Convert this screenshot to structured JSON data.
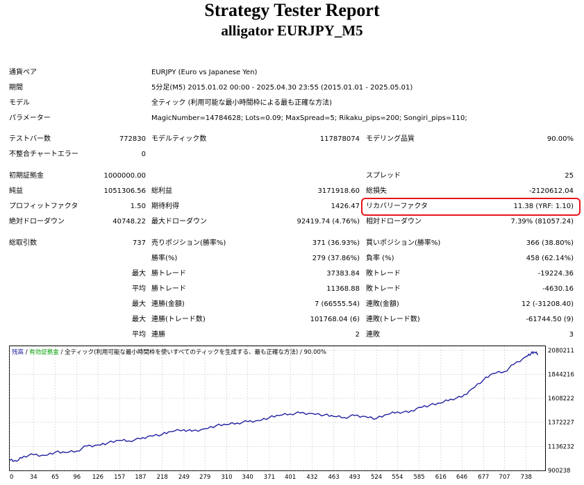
{
  "report": {
    "title": "Strategy Tester Report",
    "subtitle": "alligator EURJPY_M5"
  },
  "settings": {
    "symbol_label": "通貨ペア",
    "symbol_value": "EURJPY (Euro vs Japanese Yen)",
    "period_label": "期間",
    "period_value": "5分足(M5) 2015.01.02 00:00 - 2025.04.30 23:55 (2015.01.01 - 2025.05.01)",
    "model_label": "モデル",
    "model_value": "全ティック (利用可能な最小時間枠による最も正確な方法)",
    "params_label": "パラメーター",
    "params_value": "MagicNumber=14784628; Lots=0.09; MaxSpread=5; Rikaku_pips=200; Songiri_pips=110;"
  },
  "test": {
    "bars_label": "テストバー数",
    "bars_value": "772830",
    "ticks_label": "モデルティック数",
    "ticks_value": "117878074",
    "quality_label": "モデリング品質",
    "quality_value": "90.00%",
    "mismatch_label": "不整合チャートエラー",
    "mismatch_value": "0"
  },
  "results": {
    "deposit_label": "初期証拠金",
    "deposit_value": "1000000.00",
    "spread_label": "スプレッド",
    "spread_value": "25",
    "net_label": "純益",
    "net_value": "1051306.56",
    "gross_profit_label": "総利益",
    "gross_profit_value": "3171918.60",
    "gross_loss_label": "総損失",
    "gross_loss_value": "-2120612.04",
    "pf_label": "プロフィットファクタ",
    "pf_value": "1.50",
    "payoff_label": "期待利得",
    "payoff_value": "1426.47",
    "rf_label": "リカバリーファクタ",
    "rf_value": "11.38 (YRF: 1.10)",
    "abs_dd_label": "絶対ドローダウン",
    "abs_dd_value": "40748.22",
    "max_dd_label": "最大ドローダウン",
    "max_dd_value": "92419.74 (4.76%)",
    "rel_dd_label": "相対ドローダウン",
    "rel_dd_value": "7.39% (81057.24)"
  },
  "trades": {
    "total_label": "総取引数",
    "total_value": "737",
    "short_label": "売りポジション(勝率%)",
    "short_value": "371 (36.93%)",
    "long_label": "買いポジション(勝率%)",
    "long_value": "366 (38.80%)",
    "win_label": "勝率(%)",
    "win_value": "279 (37.86%)",
    "loss_label": "負率 (%)",
    "loss_value": "458 (62.14%)",
    "max_label": "最大",
    "avg_label": "平均",
    "largest_win_label": "勝トレード",
    "largest_win_value": "37383.84",
    "largest_loss_label": "敗トレード",
    "largest_loss_value": "-19224.36",
    "avg_win_label": "勝トレード",
    "avg_win_value": "11368.88",
    "avg_loss_label": "敗トレード",
    "avg_loss_value": "-4630.16",
    "max_cons_wins_label": "連勝(金額)",
    "max_cons_wins_value": "7 (66555.54)",
    "max_cons_losses_label": "連敗(金額)",
    "max_cons_losses_value": "12 (-31208.40)",
    "max_cons_profit_label": "連勝(トレード数)",
    "max_cons_profit_value": "101768.04 (6)",
    "max_cons_loss_label": "連敗(トレード数)",
    "max_cons_loss_value": "-61744.50 (9)",
    "avg_cons_wins_label": "連勝",
    "avg_cons_wins_value": "2",
    "avg_cons_losses_label": "連敗",
    "avg_cons_losses_value": "3"
  },
  "highlight_color": "#e8141c",
  "chart_data": {
    "type": "line",
    "legend": {
      "balance": "残高",
      "sep1": " / ",
      "equity": "有効証拠金",
      "sep2": " / ",
      "model": "全ティック(利用可能な最小時間枠を使いすべてのティックを生成する、最も正確な方法)",
      "sep3": " / ",
      "quality": "90.00%"
    },
    "colors": {
      "balance": "#1f1fa0",
      "equity": "#00a000",
      "line": "#1f1fa0",
      "grid": "#c8c8c8"
    },
    "xlim": [
      0,
      765
    ],
    "ylim": [
      900238,
      2119520
    ],
    "x_ticks": [
      "0",
      "34",
      "65",
      "96",
      "126",
      "157",
      "187",
      "218",
      "249",
      "279",
      "310",
      "340",
      "371",
      "401",
      "432",
      "463",
      "493",
      "524",
      "554",
      "585",
      "616",
      "646",
      "677",
      "707",
      "738"
    ],
    "y_ticks": [
      "2080211",
      "1844216",
      "1608222",
      "1372227",
      "1136232",
      "900238"
    ],
    "series": [
      {
        "name": "残高",
        "x": [
          0,
          10,
          20,
          34,
          50,
          65,
          80,
          96,
          110,
          126,
          140,
          157,
          170,
          187,
          200,
          218,
          230,
          249,
          260,
          279,
          295,
          310,
          325,
          340,
          355,
          371,
          385,
          401,
          415,
          432,
          450,
          463,
          478,
          493,
          508,
          524,
          540,
          554,
          570,
          585,
          600,
          616,
          630,
          646,
          660,
          677,
          690,
          707,
          720,
          738,
          745,
          750,
          755
        ],
        "y": [
          1000000,
          990000,
          1040000,
          1055000,
          1048000,
          1080000,
          1075000,
          1090000,
          1140000,
          1150000,
          1170000,
          1195000,
          1190000,
          1210000,
          1240000,
          1255000,
          1280000,
          1300000,
          1285000,
          1310000,
          1340000,
          1350000,
          1365000,
          1380000,
          1390000,
          1420000,
          1440000,
          1455000,
          1465000,
          1460000,
          1445000,
          1430000,
          1420000,
          1440000,
          1430000,
          1410000,
          1450000,
          1475000,
          1470000,
          1520000,
          1540000,
          1560000,
          1600000,
          1620000,
          1700000,
          1790000,
          1850000,
          1870000,
          1940000,
          2020000,
          2050000,
          2060000,
          2040000
        ]
      }
    ]
  }
}
